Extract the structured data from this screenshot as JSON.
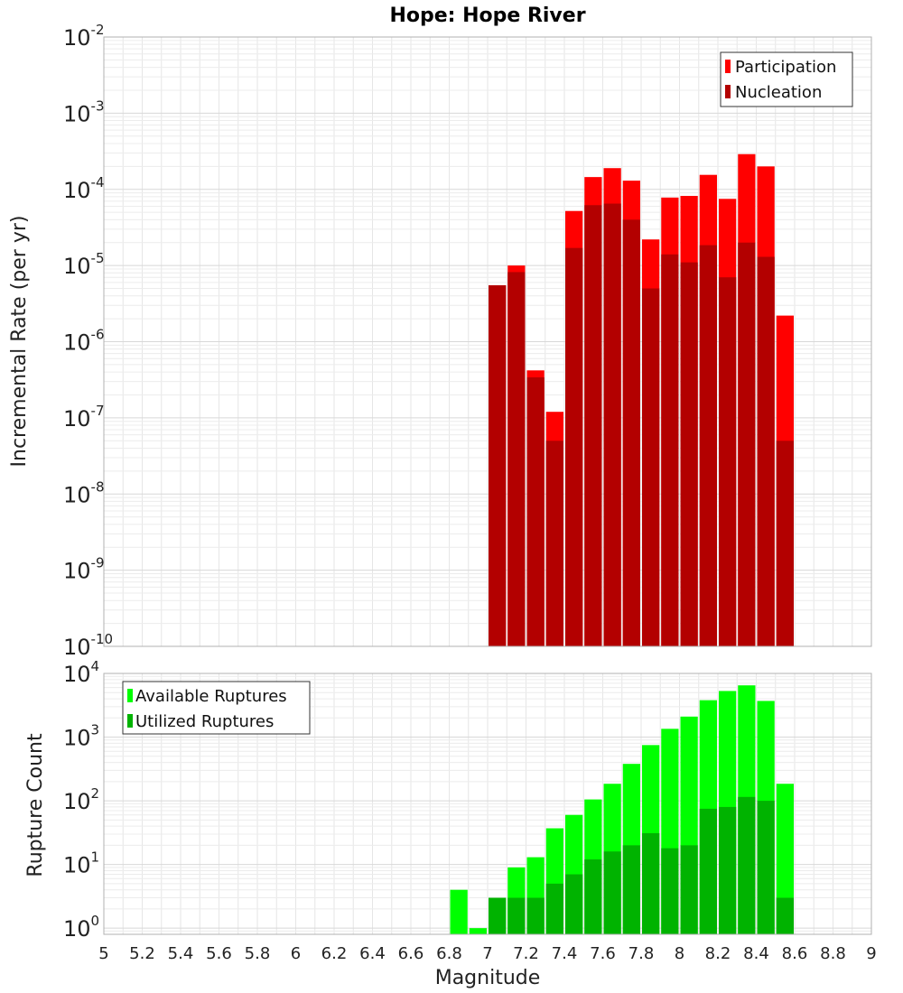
{
  "chart_data": [
    {
      "type": "bar",
      "title": "Hope: Hope River",
      "xlabel": "",
      "ylabel": "Incremental Rate (per yr)",
      "yscale": "log",
      "ylim": [
        1e-10,
        0.01
      ],
      "xlim": [
        5,
        9
      ],
      "bin_width": 0.1,
      "grid": true,
      "legend_position": "top-right",
      "x": [
        7.0,
        7.1,
        7.2,
        7.3,
        7.4,
        7.5,
        7.6,
        7.7,
        7.8,
        7.9,
        8.0,
        8.1,
        8.2,
        8.3,
        8.4,
        8.5
      ],
      "series": [
        {
          "name": "Participation",
          "color": "#ff0000",
          "values": [
            5.5e-06,
            1e-05,
            4.2e-07,
            1.2e-07,
            5.2e-05,
            0.000145,
            0.00019,
            0.00013,
            2.2e-05,
            7.8e-05,
            8.2e-05,
            0.000155,
            7.5e-05,
            0.00029,
            0.0002,
            2.2e-06
          ]
        },
        {
          "name": "Nucleation",
          "color": "#b30000",
          "values": [
            5.5e-06,
            8.2e-06,
            3.4e-07,
            5e-08,
            1.7e-05,
            6.2e-05,
            6.5e-05,
            4e-05,
            5e-06,
            1.4e-05,
            1.1e-05,
            1.85e-05,
            7e-06,
            2e-05,
            1.3e-05,
            5e-08
          ]
        }
      ],
      "y_ticks": [
        {
          "base": "10",
          "exp": "-10"
        },
        {
          "base": "10",
          "exp": "-9"
        },
        {
          "base": "10",
          "exp": "-8"
        },
        {
          "base": "10",
          "exp": "-7"
        },
        {
          "base": "10",
          "exp": "-6"
        },
        {
          "base": "10",
          "exp": "-5"
        },
        {
          "base": "10",
          "exp": "-4"
        },
        {
          "base": "10",
          "exp": "-3"
        },
        {
          "base": "10",
          "exp": "-2"
        }
      ]
    },
    {
      "type": "bar",
      "title": "",
      "xlabel": "Magnitude",
      "ylabel": "Rupture Count",
      "yscale": "log",
      "ylim": [
        0.8,
        10000
      ],
      "xlim": [
        5,
        9
      ],
      "bin_width": 0.1,
      "grid": true,
      "legend_position": "top-left",
      "x": [
        6.8,
        6.9,
        7.0,
        7.1,
        7.2,
        7.3,
        7.4,
        7.5,
        7.6,
        7.7,
        7.8,
        7.9,
        8.0,
        8.1,
        8.2,
        8.3,
        8.4,
        8.5
      ],
      "series": [
        {
          "name": "Available Ruptures",
          "color": "#00ff00",
          "values": [
            4,
            1,
            3,
            9,
            13,
            37,
            60,
            105,
            185,
            380,
            750,
            1350,
            2100,
            3800,
            5300,
            6500,
            3700,
            185
          ]
        },
        {
          "name": "Utilized Ruptures",
          "color": "#00b300",
          "values": [
            0,
            0,
            3,
            3,
            3,
            5,
            7,
            12,
            16,
            20,
            31,
            18,
            20,
            75,
            80,
            115,
            100,
            3
          ]
        }
      ],
      "y_ticks": [
        {
          "base": "10",
          "exp": "0"
        },
        {
          "base": "10",
          "exp": "1"
        },
        {
          "base": "10",
          "exp": "2"
        },
        {
          "base": "10",
          "exp": "3"
        },
        {
          "base": "10",
          "exp": "4"
        }
      ],
      "x_tick_labels": [
        "5",
        "5.2",
        "5.4",
        "5.6",
        "5.8",
        "6",
        "6.2",
        "6.4",
        "6.6",
        "6.8",
        "7",
        "7.2",
        "7.4",
        "7.6",
        "7.8",
        "8",
        "8.2",
        "8.4",
        "8.6",
        "8.8",
        "9"
      ]
    }
  ]
}
